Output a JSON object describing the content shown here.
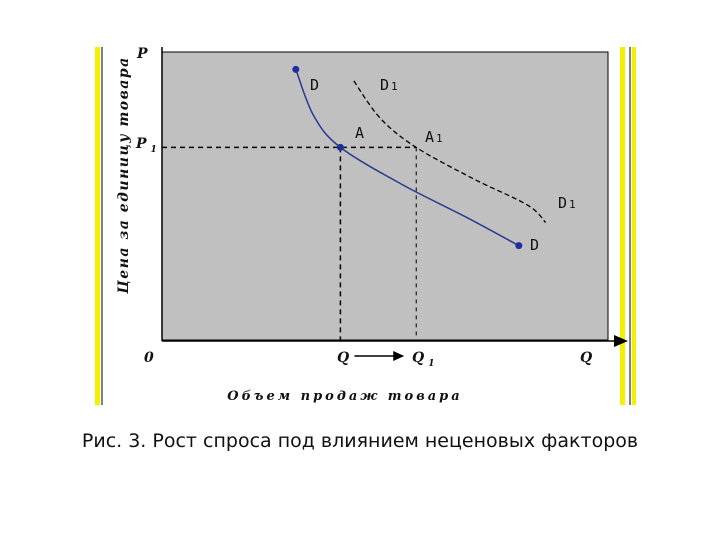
{
  "caption": "Рис. 3. Рост спроса под влиянием неценовых факторов",
  "colors": {
    "plot_bg": "#c0c0c0",
    "curve": "#2b3a8f",
    "point": "#1f2f9a",
    "side_bar": "#f5f000",
    "axis": "#000000"
  },
  "chart_data": {
    "type": "line",
    "ylabel": "Цена за единицу товара",
    "xlabel": "Объем продаж товара",
    "origin_label": "0",
    "axis_end_labels": {
      "y": "P",
      "x": "Q"
    },
    "y_ticks": [
      {
        "main": "P",
        "sub": "1"
      }
    ],
    "x_ticks": [
      {
        "main": "Q",
        "sub": ""
      },
      {
        "main": "Q",
        "sub": "1"
      }
    ],
    "xlim": [
      0,
      10
    ],
    "ylim": [
      0,
      10
    ],
    "series": [
      {
        "name": "D",
        "end_label": "D",
        "style": "solid",
        "endpoint_markers": true,
        "x": [
          3.0,
          3.4,
          4.0,
          5.4,
          6.8,
          8.0
        ],
        "y": [
          9.4,
          7.8,
          6.7,
          5.4,
          4.3,
          3.3
        ]
      },
      {
        "name": "D1",
        "end_label_main": "D",
        "end_label_sub": "1",
        "top_label_main": "D",
        "top_label_sub": "1",
        "style": "dashed",
        "endpoint_markers": false,
        "x": [
          4.3,
          4.9,
          5.7,
          7.0,
          8.2,
          8.6
        ],
        "y": [
          9.0,
          7.7,
          6.7,
          5.6,
          4.7,
          4.1
        ]
      }
    ],
    "points": [
      {
        "label": "A",
        "sub": "",
        "x": 4.0,
        "y": 6.7,
        "marker": true
      },
      {
        "label": "A",
        "sub": "1",
        "x": 5.7,
        "y": 6.7,
        "marker": false
      }
    ],
    "shift_arrow": {
      "from_x": 4.0,
      "to_x": 5.7
    },
    "grid": false,
    "legend": "none"
  }
}
